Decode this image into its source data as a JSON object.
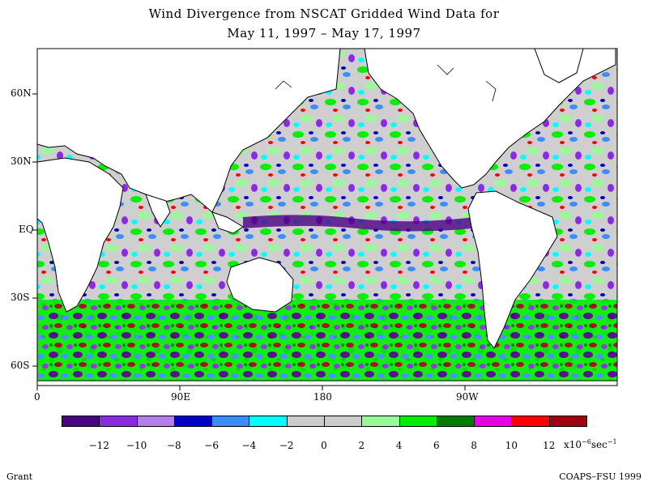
{
  "title_line1": "Wind Divergence from NSCAT Gridded Wind Data for",
  "title_line2": "May 11, 1997 – May 17, 1997",
  "latitude_labels": [
    "60N",
    "30N",
    "EQ",
    "30S",
    "60S"
  ],
  "longitude_labels": [
    "0",
    "90E",
    "180",
    "90W"
  ],
  "colorbar": {
    "colors": [
      "#4b0082",
      "#8a2be2",
      "#b27fe8",
      "#0000cd",
      "#3a8cff",
      "#00ffff",
      "#cccccc",
      "#cccccc",
      "#98fb98",
      "#00ee00",
      "#007a00",
      "#e600e6",
      "#ff0000",
      "#a00010"
    ],
    "tick_labels": [
      "−12",
      "−10",
      "−8",
      "−6",
      "−4",
      "−2",
      "0",
      "2",
      "4",
      "6",
      "8",
      "10",
      "12"
    ],
    "unit_base": "x10",
    "unit_exp": "−6",
    "unit_sec": "sec",
    "unit_sec_exp": "−1"
  },
  "footer_left": "Grant",
  "footer_right": "COAPS–FSU 1999"
}
